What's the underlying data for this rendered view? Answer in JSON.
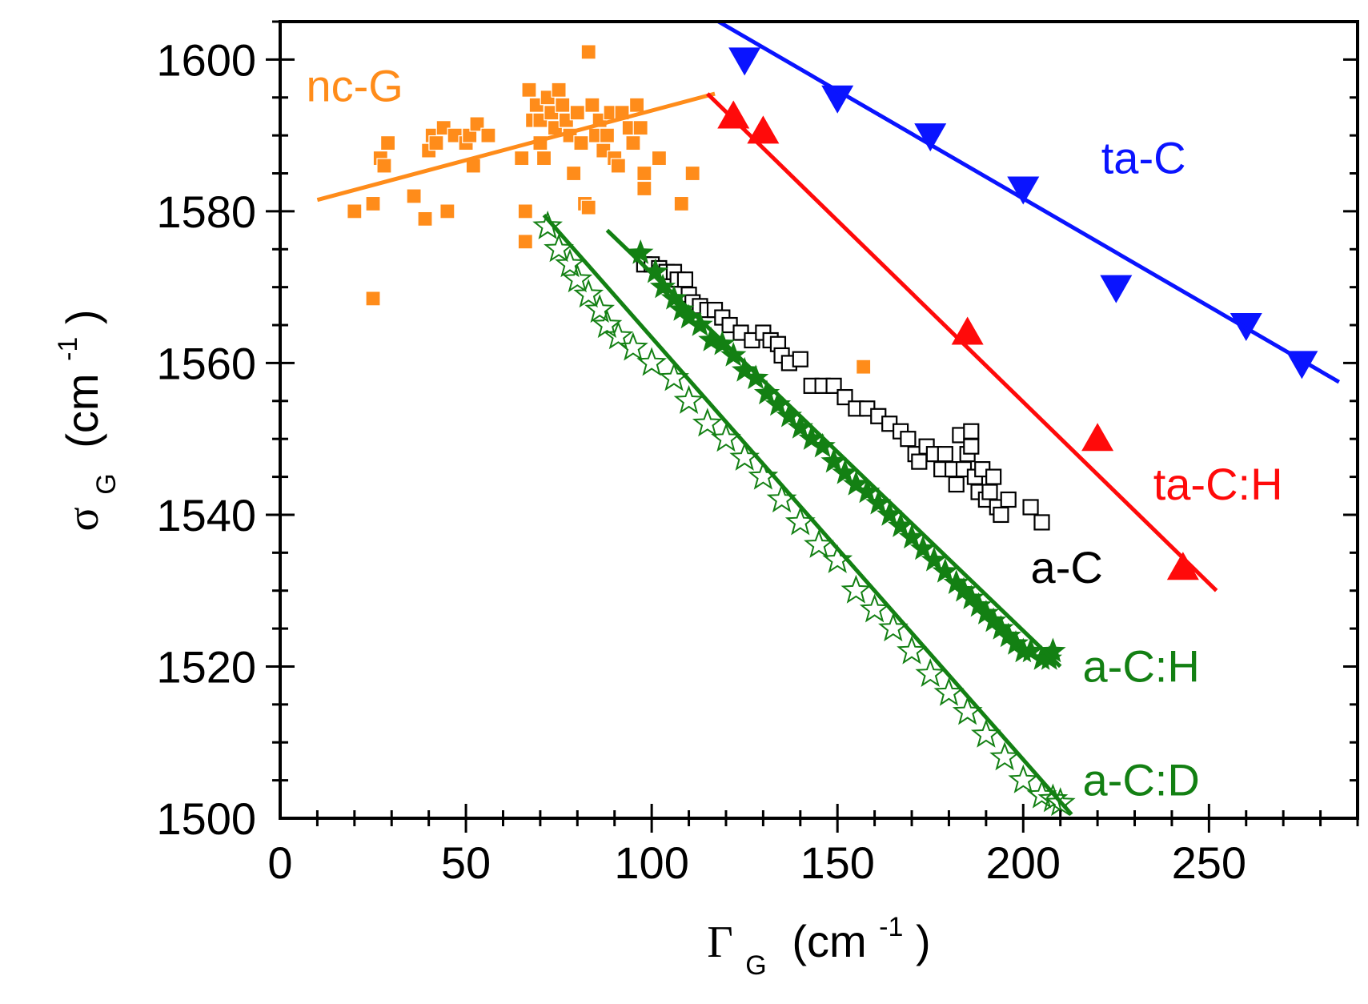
{
  "chart_data": {
    "type": "scatter",
    "title": "",
    "xlabel": {
      "symbol": "Γ",
      "subscript": "G",
      "unit_prefix": "(cm",
      "unit_exp": "-1",
      "unit_suffix": ")"
    },
    "ylabel": {
      "symbol": "σ",
      "subscript": "G",
      "unit_prefix": "(cm",
      "unit_exp": "-1",
      "unit_suffix": ")"
    },
    "xlim": [
      0,
      290
    ],
    "ylim": [
      1500,
      1605
    ],
    "xticks": [
      0,
      50,
      100,
      150,
      200,
      250
    ],
    "yticks": [
      1500,
      1520,
      1540,
      1560,
      1580,
      1600
    ],
    "grid": false,
    "series": [
      {
        "name": "nc-G",
        "color": "#FF8C1A",
        "marker": "filled-square",
        "fit": [
          [
            10,
            1581.5
          ],
          [
            117,
            1595.5
          ]
        ],
        "points": [
          [
            20,
            1580
          ],
          [
            25,
            1581
          ],
          [
            25,
            1568.5
          ],
          [
            27,
            1587
          ],
          [
            28,
            1586
          ],
          [
            29,
            1589
          ],
          [
            36,
            1582
          ],
          [
            39,
            1579
          ],
          [
            40,
            1588
          ],
          [
            41,
            1590
          ],
          [
            42,
            1589
          ],
          [
            44,
            1591
          ],
          [
            45,
            1580
          ],
          [
            47,
            1590
          ],
          [
            50,
            1589
          ],
          [
            51,
            1590
          ],
          [
            52,
            1586
          ],
          [
            53,
            1591.5
          ],
          [
            56,
            1590
          ],
          [
            65,
            1587
          ],
          [
            66,
            1580
          ],
          [
            66,
            1576
          ],
          [
            67,
            1596
          ],
          [
            68,
            1592
          ],
          [
            69,
            1594
          ],
          [
            70,
            1592
          ],
          [
            70,
            1589
          ],
          [
            71,
            1587
          ],
          [
            72,
            1595
          ],
          [
            73,
            1593
          ],
          [
            74,
            1591
          ],
          [
            75,
            1596
          ],
          [
            76,
            1594
          ],
          [
            77,
            1592
          ],
          [
            78,
            1590
          ],
          [
            79,
            1585
          ],
          [
            80,
            1593
          ],
          [
            81,
            1589
          ],
          [
            82,
            1581
          ],
          [
            83,
            1580.5
          ],
          [
            83,
            1601
          ],
          [
            84,
            1594
          ],
          [
            85,
            1590
          ],
          [
            86,
            1592
          ],
          [
            87,
            1588
          ],
          [
            88,
            1590
          ],
          [
            89,
            1593
          ],
          [
            90,
            1587
          ],
          [
            91,
            1586
          ],
          [
            92,
            1593
          ],
          [
            94,
            1591
          ],
          [
            95,
            1589
          ],
          [
            96,
            1594
          ],
          [
            97,
            1591
          ],
          [
            98,
            1585
          ],
          [
            98,
            1583
          ],
          [
            102,
            1587
          ],
          [
            108,
            1581
          ],
          [
            111,
            1585
          ],
          [
            157,
            1559.5
          ]
        ]
      },
      {
        "name": "ta-C",
        "color": "#0A14FF",
        "marker": "filled-triangle-down",
        "fit": [
          [
            118,
            1605
          ],
          [
            285,
            1557.5
          ]
        ],
        "points": [
          [
            125,
            1600
          ],
          [
            150,
            1595
          ],
          [
            175,
            1590
          ],
          [
            200,
            1583
          ],
          [
            225,
            1570
          ],
          [
            260,
            1565
          ],
          [
            275,
            1560
          ]
        ]
      },
      {
        "name": "ta-C:H",
        "color": "#FF0A0A",
        "marker": "filled-triangle-up",
        "fit": [
          [
            115,
            1595.5
          ],
          [
            252,
            1530
          ]
        ],
        "points": [
          [
            122,
            1592.5
          ],
          [
            130,
            1590.5
          ],
          [
            185,
            1564
          ],
          [
            220,
            1550
          ],
          [
            243,
            1533
          ]
        ]
      },
      {
        "name": "a-C",
        "color": "#000000",
        "marker": "open-square",
        "fit": [],
        "points": [
          [
            98,
            1573
          ],
          [
            100,
            1573
          ],
          [
            102,
            1572.5
          ],
          [
            104,
            1572
          ],
          [
            106,
            1572
          ],
          [
            107,
            1571
          ],
          [
            109,
            1571
          ],
          [
            110,
            1569
          ],
          [
            111,
            1568
          ],
          [
            113,
            1567.5
          ],
          [
            115,
            1567
          ],
          [
            117,
            1567
          ],
          [
            119,
            1566
          ],
          [
            121,
            1565
          ],
          [
            124,
            1564
          ],
          [
            127,
            1563
          ],
          [
            130,
            1564
          ],
          [
            132,
            1563
          ],
          [
            134,
            1562.5
          ],
          [
            135,
            1561
          ],
          [
            137,
            1560
          ],
          [
            140,
            1560.5
          ],
          [
            143,
            1557
          ],
          [
            146,
            1557
          ],
          [
            149,
            1557
          ],
          [
            152,
            1555.5
          ],
          [
            155,
            1554
          ],
          [
            158,
            1554
          ],
          [
            161,
            1553
          ],
          [
            164,
            1552
          ],
          [
            167,
            1551
          ],
          [
            169,
            1550
          ],
          [
            171,
            1548
          ],
          [
            172,
            1547
          ],
          [
            174,
            1549
          ],
          [
            176,
            1548
          ],
          [
            178,
            1546
          ],
          [
            179,
            1548
          ],
          [
            181,
            1546
          ],
          [
            182,
            1544
          ],
          [
            183,
            1550.5
          ],
          [
            184,
            1546
          ],
          [
            185,
            1548
          ],
          [
            186,
            1549
          ],
          [
            186,
            1551
          ],
          [
            187,
            1545
          ],
          [
            188,
            1543
          ],
          [
            189,
            1546
          ],
          [
            190,
            1542
          ],
          [
            191,
            1543
          ],
          [
            192,
            1545
          ],
          [
            193,
            1541
          ],
          [
            194,
            1540
          ],
          [
            196,
            1542
          ],
          [
            202,
            1541
          ],
          [
            205,
            1539
          ]
        ]
      },
      {
        "name": "a-C:H",
        "color": "#138013",
        "marker": "filled-star",
        "fit": [
          [
            88,
            1577.5
          ],
          [
            210,
            1520
          ]
        ],
        "points": [
          [
            97,
            1574.5
          ],
          [
            101,
            1572
          ],
          [
            103,
            1570
          ],
          [
            106,
            1568.5
          ],
          [
            108,
            1567
          ],
          [
            110,
            1566
          ],
          [
            113,
            1565
          ],
          [
            116,
            1563
          ],
          [
            119,
            1562.5
          ],
          [
            122,
            1561
          ],
          [
            125,
            1559
          ],
          [
            128,
            1558
          ],
          [
            131,
            1556
          ],
          [
            134,
            1554.5
          ],
          [
            137,
            1553
          ],
          [
            140,
            1551.5
          ],
          [
            143,
            1550
          ],
          [
            146,
            1549
          ],
          [
            149,
            1547
          ],
          [
            152,
            1545.5
          ],
          [
            155,
            1544
          ],
          [
            158,
            1543
          ],
          [
            161,
            1541.5
          ],
          [
            164,
            1540
          ],
          [
            167,
            1538.5
          ],
          [
            170,
            1537
          ],
          [
            173,
            1535.5
          ],
          [
            176,
            1534
          ],
          [
            179,
            1532.5
          ],
          [
            182,
            1531
          ],
          [
            184,
            1530
          ],
          [
            186,
            1529
          ],
          [
            188,
            1528
          ],
          [
            190,
            1527
          ],
          [
            192,
            1526
          ],
          [
            194,
            1525
          ],
          [
            196,
            1524
          ],
          [
            198,
            1523
          ],
          [
            200,
            1522
          ],
          [
            202,
            1522
          ],
          [
            205,
            1521
          ],
          [
            207,
            1521
          ],
          [
            208,
            1522
          ]
        ]
      },
      {
        "name": "a-C:D",
        "color": "#138013",
        "marker": "open-star",
        "fit": [
          [
            71,
            1579.5
          ],
          [
            213,
            1500.5
          ]
        ],
        "points": [
          [
            72,
            1578
          ],
          [
            75,
            1575
          ],
          [
            78,
            1573
          ],
          [
            80,
            1571
          ],
          [
            83,
            1569
          ],
          [
            86,
            1567
          ],
          [
            88,
            1565
          ],
          [
            91,
            1563.5
          ],
          [
            95,
            1562
          ],
          [
            100,
            1560
          ],
          [
            106,
            1558
          ],
          [
            110,
            1555
          ],
          [
            115,
            1552
          ],
          [
            120,
            1550
          ],
          [
            125,
            1547.5
          ],
          [
            130,
            1545
          ],
          [
            135,
            1542
          ],
          [
            140,
            1539
          ],
          [
            145,
            1536
          ],
          [
            150,
            1534
          ],
          [
            155,
            1530
          ],
          [
            160,
            1527.5
          ],
          [
            165,
            1525
          ],
          [
            170,
            1522
          ],
          [
            175,
            1519
          ],
          [
            180,
            1516.5
          ],
          [
            185,
            1514
          ],
          [
            190,
            1511
          ],
          [
            195,
            1508
          ],
          [
            200,
            1505
          ],
          [
            205,
            1503
          ],
          [
            208,
            1502.5
          ],
          [
            210,
            1502
          ]
        ]
      }
    ],
    "labels": [
      {
        "text": "nc-G",
        "color": "#FF8C1A",
        "x": 7,
        "y": 1594.5
      },
      {
        "text": "ta-C",
        "color": "#0A14FF",
        "x": 221,
        "y": 1585
      },
      {
        "text": "ta-C:H",
        "color": "#FF0A0A",
        "x": 235,
        "y": 1542
      },
      {
        "text": "a-C",
        "color": "#000000",
        "x": 202,
        "y": 1531
      },
      {
        "text": "a-C:H",
        "color": "#138013",
        "x": 216,
        "y": 1518
      },
      {
        "text": "a-C:D",
        "color": "#138013",
        "x": 216,
        "y": 1503
      }
    ]
  }
}
